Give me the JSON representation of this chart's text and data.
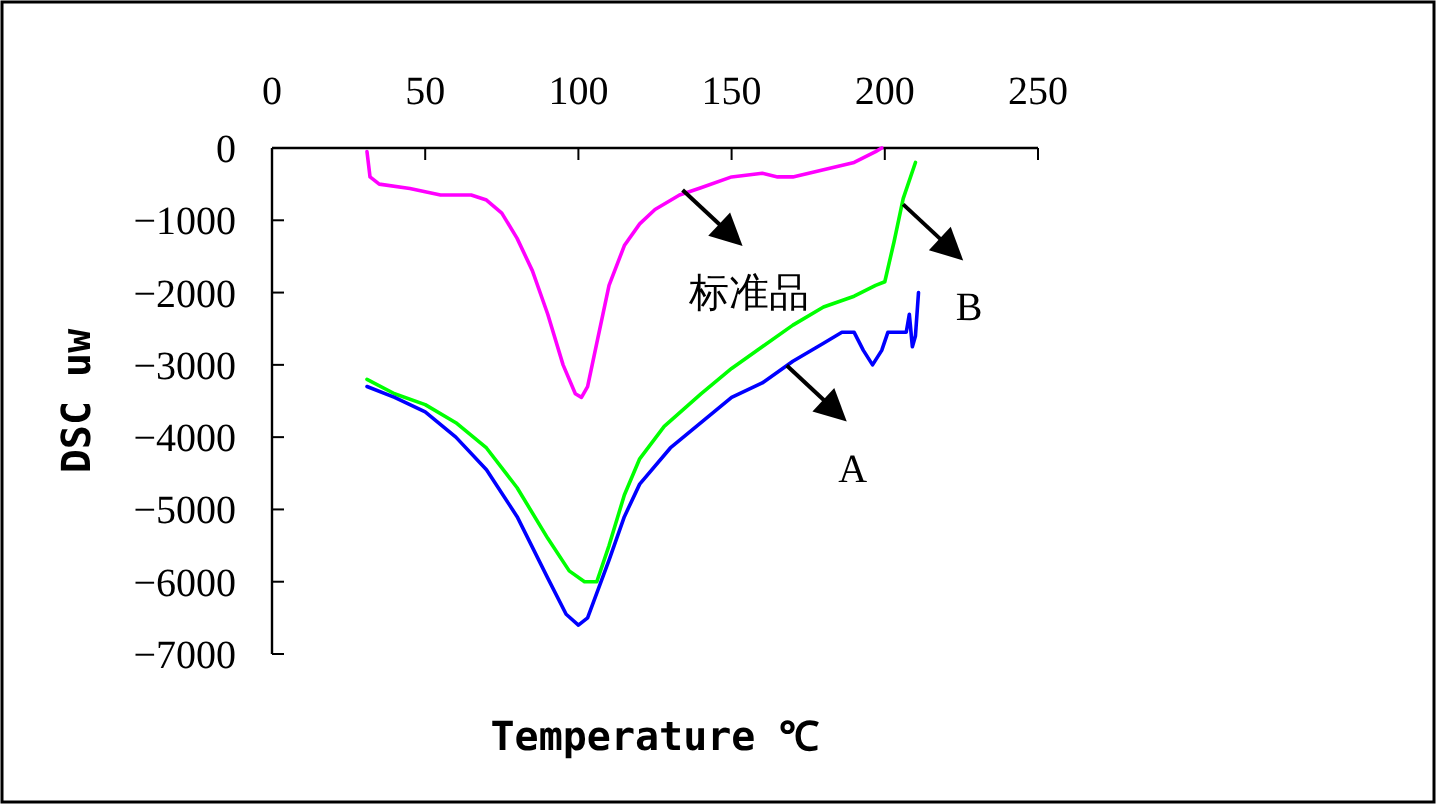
{
  "chart_data": {
    "type": "line",
    "xlabel": "Temperature ℃",
    "ylabel": "DSC uw",
    "xlim": [
      0,
      250
    ],
    "ylim": [
      -7000,
      0
    ],
    "xticks": [
      0,
      50,
      100,
      150,
      200,
      250
    ],
    "yticks": [
      -7000,
      -6000,
      -5000,
      -4000,
      -3000,
      -2000,
      -1000,
      0
    ],
    "series": [
      {
        "color": "#ff00ff",
        "x": [
          31,
          32,
          35,
          45,
          55,
          65,
          70,
          75,
          80,
          85,
          90,
          95,
          99,
          101,
          103,
          106,
          110,
          115,
          120,
          125,
          133,
          140,
          150,
          160,
          165,
          170,
          180,
          190,
          197,
          199
        ],
        "values": [
          -50,
          -400,
          -500,
          -560,
          -650,
          -650,
          -720,
          -900,
          -1250,
          -1700,
          -2300,
          -3000,
          -3400,
          -3450,
          -3300,
          -2700,
          -1900,
          -1350,
          -1050,
          -850,
          -650,
          -550,
          -400,
          -350,
          -400,
          -400,
          -300,
          -200,
          -50,
          0
        ]
      },
      {
        "color": "#00ff00",
        "x": [
          31,
          40,
          50,
          60,
          70,
          80,
          90,
          97,
          102,
          106,
          110,
          115,
          120,
          128,
          140,
          150,
          160,
          170,
          180,
          190,
          197,
          200,
          203,
          206,
          210
        ],
        "values": [
          -3200,
          -3400,
          -3550,
          -3800,
          -4150,
          -4700,
          -5400,
          -5850,
          -6000,
          -6000,
          -5500,
          -4800,
          -4300,
          -3850,
          -3400,
          -3050,
          -2750,
          -2450,
          -2200,
          -2050,
          -1900,
          -1850,
          -1300,
          -700,
          -200
        ]
      },
      {
        "color": "#0000ff",
        "x": [
          31,
          40,
          50,
          60,
          70,
          80,
          90,
          96,
          100,
          103,
          110,
          115,
          120,
          130,
          140,
          150,
          160,
          170,
          180,
          186,
          190,
          193,
          196,
          199,
          201,
          207,
          208,
          209,
          210,
          211
        ],
        "values": [
          -3300,
          -3450,
          -3650,
          -4000,
          -4450,
          -5100,
          -5950,
          -6450,
          -6600,
          -6500,
          -5700,
          -5100,
          -4650,
          -4150,
          -3800,
          -3450,
          -3250,
          -2950,
          -2700,
          -2550,
          -2550,
          -2800,
          -3000,
          -2800,
          -2550,
          -2550,
          -2300,
          -2750,
          -2600,
          -2000
        ]
      }
    ],
    "annotations": [
      {
        "text": "标准品",
        "x": 134,
        "y": -580
      },
      {
        "text": "A",
        "x": 168,
        "y": -3010
      },
      {
        "text": "B",
        "x": 206,
        "y": -780
      }
    ]
  }
}
